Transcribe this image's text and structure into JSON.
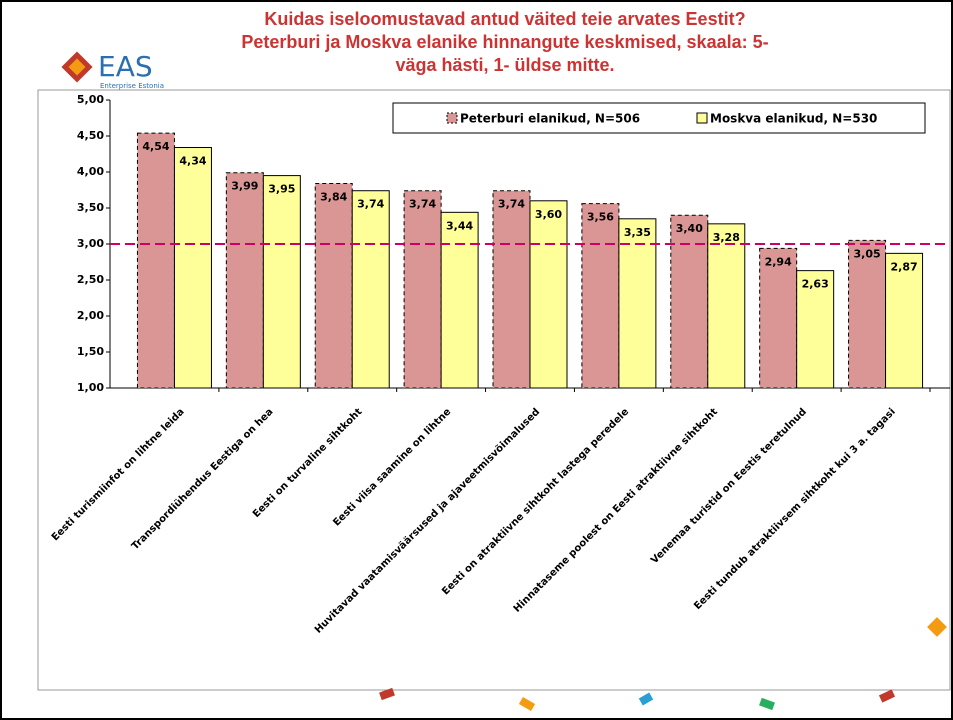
{
  "logo": {
    "text": "EAS",
    "subtitle": "Enterprise Estonia"
  },
  "chart_data": {
    "type": "bar",
    "title": "Kuidas iseloomustavad antud väited teie arvates Eestit? Peterburi ja Moskva elanike hinnangute keskmised, skaala: 5- väga hästi, 1- üldse mitte.",
    "categories": [
      "Eesti turismiinfot on lihtne leida",
      "Transpordiühendus Eestiga on hea",
      "Eesti on turvaline sihtkoht",
      "Eesti viisa saamine on lihtne",
      "Huvitavad vaatamisväärsused ja ajaveetmisvõimalused",
      "Eesti on atraktiivne sihtkoht lastega peredele",
      "Hinnataseme poolest on Eesti atraktiivne sihtkoht",
      "Venemaa turistid on Eestis teretulnud",
      "Eesti tundub atraktiivsem sihtkoht kui 3 a. tagasi"
    ],
    "series": [
      {
        "name": "Peterburi elanikud, N=506",
        "color": "#d99694",
        "values": [
          4.54,
          3.99,
          3.84,
          3.74,
          3.74,
          3.56,
          3.4,
          2.94,
          3.05
        ],
        "value_labels": [
          "4,54",
          "3,99",
          "3,84",
          "3,74",
          "3,74",
          "3,56",
          "3,40",
          "2,94",
          "3,05"
        ]
      },
      {
        "name": "Moskva elanikud, N=530",
        "color": "#ffff99",
        "values": [
          4.34,
          3.95,
          3.74,
          3.44,
          3.6,
          3.35,
          3.28,
          2.63,
          2.87
        ],
        "value_labels": [
          "4,34",
          "3,95",
          "3,74",
          "3,44",
          "3,60",
          "3,35",
          "3,28",
          "2,63",
          "2,87"
        ]
      }
    ],
    "ylim": [
      1,
      5
    ],
    "yticks": [
      {
        "value": 1,
        "label": "1,00"
      },
      {
        "value": 1.5,
        "label": "1,50"
      },
      {
        "value": 2,
        "label": "2,00"
      },
      {
        "value": 2.5,
        "label": "2,50"
      },
      {
        "value": 3,
        "label": "3,00"
      },
      {
        "value": 3.5,
        "label": "3,50"
      },
      {
        "value": 4,
        "label": "4,00"
      },
      {
        "value": 4.5,
        "label": "4,50"
      },
      {
        "value": 5,
        "label": "5,00"
      }
    ],
    "reference_line": 3,
    "reference_color": "#cc0066",
    "legend": "top-right"
  }
}
